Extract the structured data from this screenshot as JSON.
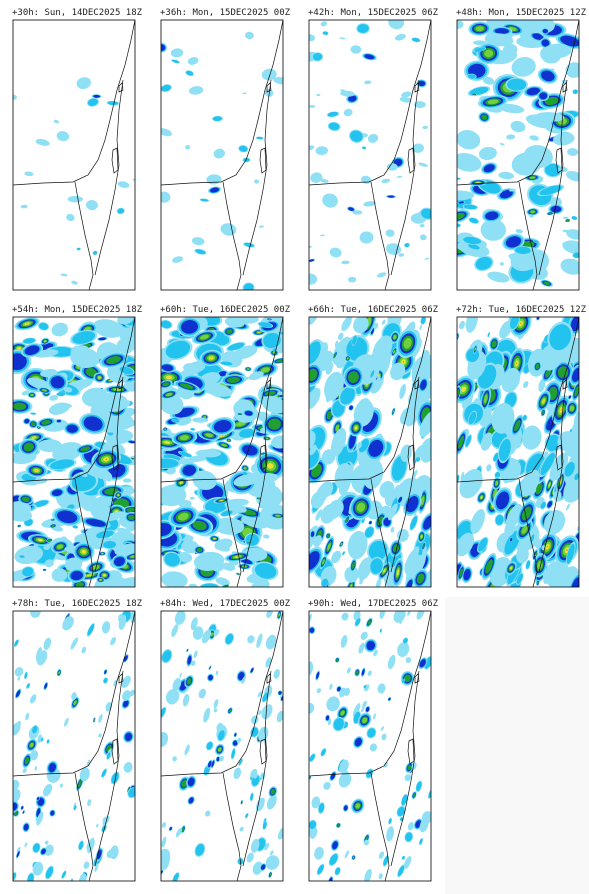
{
  "panels": [
    {
      "title": "+30h: Sun, 14DEC2025 18Z"
    },
    {
      "title": "+36h: Mon, 15DEC2025 00Z"
    },
    {
      "title": "+42h: Mon, 15DEC2025 06Z"
    },
    {
      "title": "+48h: Mon, 15DEC2025 12Z"
    },
    {
      "title": "+54h: Mon, 15DEC2025 18Z"
    },
    {
      "title": "+60h: Tue, 16DEC2025 00Z"
    },
    {
      "title": "+66h: Tue, 16DEC2025 06Z"
    },
    {
      "title": "+72h: Tue, 16DEC2025 12Z"
    },
    {
      "title": "+78h: Tue, 16DEC2025 18Z"
    },
    {
      "title": "+84h: Wed, 17DEC2025 00Z"
    },
    {
      "title": "+90h: Wed, 17DEC2025 06Z"
    }
  ]
}
